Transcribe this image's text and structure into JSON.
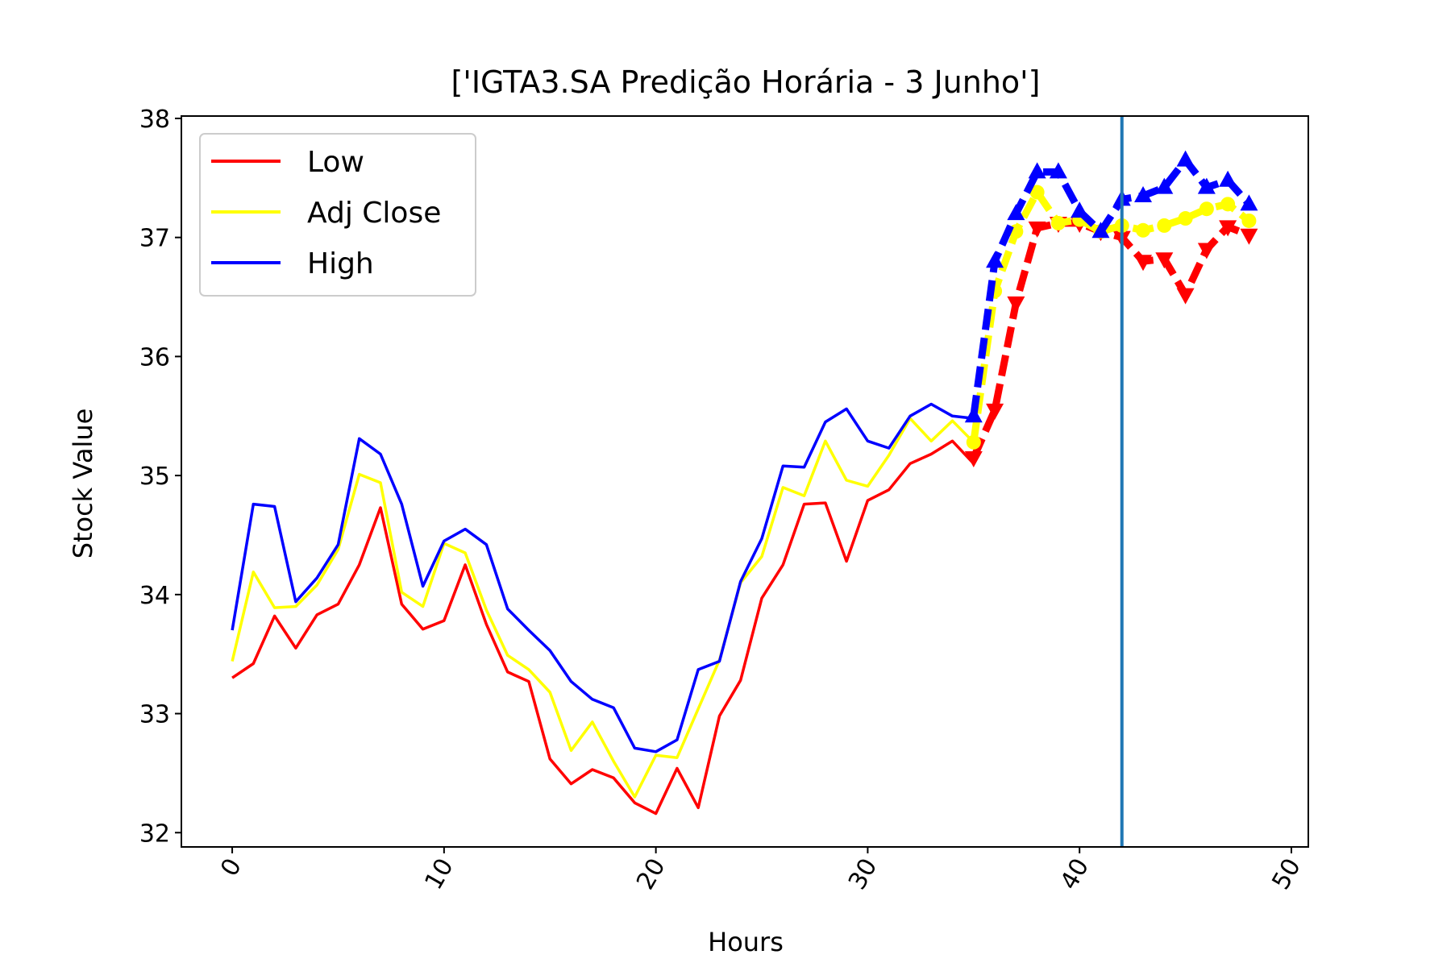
{
  "chart_data": {
    "type": "line",
    "title": "['IGTA3.SA Predição Horária - 3 Junho']",
    "xlabel": "Hours",
    "ylabel": "Stock Value",
    "xlim": [
      -2.4,
      50.8
    ],
    "ylim": [
      31.88,
      38.02
    ],
    "xticks": [
      0,
      10,
      20,
      30,
      40,
      50
    ],
    "yticks": [
      32,
      33,
      34,
      35,
      36,
      37,
      38
    ],
    "grid": false,
    "legend_position": "upper-left",
    "vline_x": 42,
    "vline_color": "#1f77b4",
    "x": [
      0,
      1,
      2,
      3,
      4,
      5,
      6,
      7,
      8,
      9,
      10,
      11,
      12,
      13,
      14,
      15,
      16,
      17,
      18,
      19,
      20,
      21,
      22,
      23,
      24,
      25,
      26,
      27,
      28,
      29,
      30,
      31,
      32,
      33,
      34,
      35
    ],
    "series": [
      {
        "name": "Low",
        "color": "#ff0000",
        "values": [
          33.3,
          33.42,
          33.82,
          33.55,
          33.83,
          33.92,
          34.25,
          34.73,
          33.92,
          33.71,
          33.78,
          34.25,
          33.75,
          33.35,
          33.27,
          32.62,
          32.41,
          32.53,
          32.46,
          32.25,
          32.16,
          32.54,
          32.21,
          32.98,
          33.28,
          33.97,
          34.25,
          34.76,
          34.77,
          34.28,
          34.79,
          34.88,
          35.1,
          35.18,
          35.29,
          35.1
        ],
        "forecast_x": [
          35,
          36,
          37,
          38,
          39,
          40,
          41,
          42,
          43,
          44,
          45,
          46,
          47,
          48
        ],
        "forecast_values": [
          35.15,
          35.55,
          36.45,
          37.08,
          37.12,
          37.12,
          37.05,
          37.0,
          36.8,
          36.82,
          36.52,
          36.9,
          37.09,
          37.02
        ],
        "marker": "triangle-down"
      },
      {
        "name": "Adj Close",
        "color": "#ffff00",
        "values": [
          33.44,
          34.19,
          33.89,
          33.9,
          34.08,
          34.38,
          35.01,
          34.94,
          34.02,
          33.9,
          34.43,
          34.35,
          33.87,
          33.49,
          33.37,
          33.18,
          32.69,
          32.93,
          32.6,
          32.3,
          32.65,
          32.63,
          33.04,
          33.45,
          34.1,
          34.32,
          34.9,
          34.83,
          35.29,
          34.96,
          34.91,
          35.17,
          35.48,
          35.29,
          35.46,
          35.28
        ],
        "forecast_x": [
          35,
          36,
          37,
          38,
          39,
          40,
          41,
          42,
          43,
          44,
          45,
          46,
          47,
          48
        ],
        "forecast_values": [
          35.28,
          36.55,
          37.05,
          37.38,
          37.12,
          37.15,
          37.05,
          37.1,
          37.06,
          37.1,
          37.16,
          37.24,
          37.28,
          37.14
        ],
        "marker": "circle"
      },
      {
        "name": "High",
        "color": "#0000ff",
        "values": [
          33.7,
          34.76,
          34.74,
          33.94,
          34.14,
          34.42,
          35.31,
          35.18,
          34.76,
          34.07,
          34.45,
          34.55,
          34.42,
          33.88,
          33.7,
          33.53,
          33.27,
          33.12,
          33.05,
          32.71,
          32.68,
          32.78,
          33.37,
          33.44,
          34.11,
          34.47,
          35.08,
          35.07,
          35.45,
          35.56,
          35.29,
          35.23,
          35.5,
          35.6,
          35.5,
          35.48
        ],
        "forecast_x": [
          35,
          36,
          37,
          38,
          39,
          40,
          41,
          42,
          43,
          44,
          45,
          46,
          47,
          48
        ],
        "forecast_values": [
          35.5,
          36.8,
          37.2,
          37.55,
          37.55,
          37.22,
          37.05,
          37.32,
          37.35,
          37.42,
          37.65,
          37.42,
          37.48,
          37.28
        ],
        "marker": "triangle-up"
      }
    ]
  }
}
